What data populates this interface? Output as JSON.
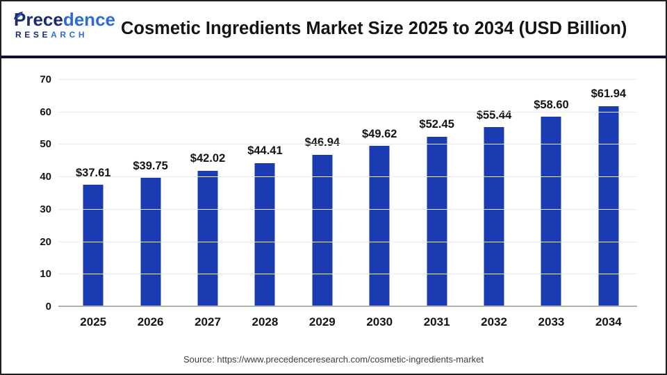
{
  "header": {
    "logo": {
      "word_part1": "Prece",
      "word_part2": "dence",
      "sub_part1": "RESE",
      "sub_part2": "ARCH",
      "navy": "#1C2A6E",
      "blue": "#2E6BD6"
    },
    "title": "Cosmetic Ingredients Market Size 2025 to 2034 (USD Billion)"
  },
  "chart_data": {
    "type": "bar",
    "title": "Cosmetic Ingredients Market Size 2025 to 2034 (USD Billion)",
    "categories": [
      "2025",
      "2026",
      "2027",
      "2028",
      "2029",
      "2030",
      "2031",
      "2032",
      "2033",
      "2034"
    ],
    "values": [
      37.61,
      39.75,
      42.02,
      44.41,
      46.94,
      49.62,
      52.45,
      55.44,
      58.6,
      61.94
    ],
    "value_labels": [
      "$37.61",
      "$39.75",
      "$42.02",
      "$44.41",
      "$46.94",
      "$49.62",
      "$52.45",
      "$55.44",
      "$58.60",
      "$61.94"
    ],
    "xlabel": "",
    "ylabel": "",
    "ylim": [
      0,
      70
    ],
    "yticks": [
      0,
      10,
      20,
      30,
      40,
      50,
      60,
      70
    ],
    "bar_color": "#1B3BB3",
    "grid": "horizontal",
    "legend": "none"
  },
  "footer": {
    "source": "Source: https://www.precedenceresearch.com/cosmetic-ingredients-market"
  },
  "colors": {
    "divider": "#10102E",
    "grid": "#EBEBEB",
    "axis_line": "#B0B0B2",
    "text": "#141414",
    "source_text": "#3D3D3D"
  }
}
